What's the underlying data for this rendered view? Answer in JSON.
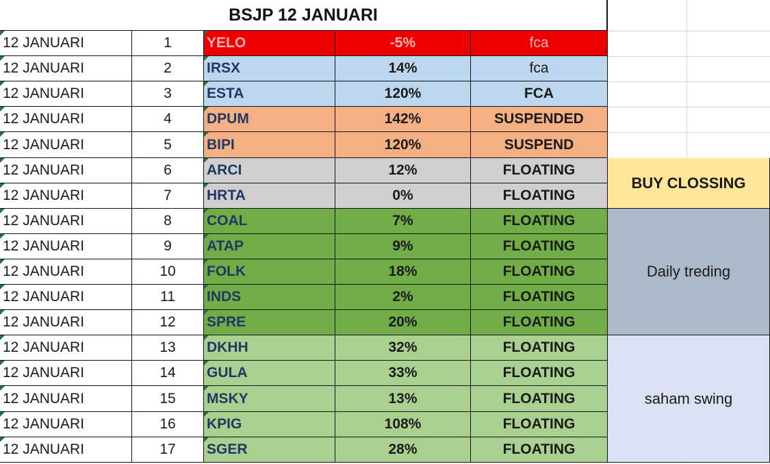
{
  "sheet_title": "BSJP  12  JANUARI",
  "colors": {
    "red": "#ee0000",
    "blue": "#bdd7ee",
    "orange": "#f4b084",
    "gray": "#d0cece",
    "green_dark": "#70ad47",
    "green_light": "#a9d08e",
    "side_yellow": "#ffe699",
    "side_slate": "#acb9ca",
    "side_lavender": "#d9e1f2"
  },
  "rows": [
    {
      "date": "12 JANUARI",
      "no": "1",
      "code": "YELO",
      "pct": "-5%",
      "status": "fca",
      "band": "red"
    },
    {
      "date": "12 JANUARI",
      "no": "2",
      "code": "IRSX",
      "pct": "14%",
      "status": "fca",
      "band": "blue"
    },
    {
      "date": "12 JANUARI",
      "no": "3",
      "code": "ESTA",
      "pct": "120%",
      "status": "FCA",
      "band": "blue"
    },
    {
      "date": "12 JANUARI",
      "no": "4",
      "code": "DPUM",
      "pct": "142%",
      "status": "SUSPENDED",
      "band": "orange"
    },
    {
      "date": "12 JANUARI",
      "no": "5",
      "code": "BIPI",
      "pct": "120%",
      "status": "SUSPEND",
      "band": "orange"
    },
    {
      "date": "12 JANUARI",
      "no": "6",
      "code": "ARCI",
      "pct": "12%",
      "status": "FLOATING",
      "band": "gray"
    },
    {
      "date": "12 JANUARI",
      "no": "7",
      "code": "HRTA",
      "pct": "0%",
      "status": "FLOATING",
      "band": "gray"
    },
    {
      "date": "12 JANUARI",
      "no": "8",
      "code": "COAL",
      "pct": "7%",
      "status": "FLOATING",
      "band": "green_dark"
    },
    {
      "date": "12 JANUARI",
      "no": "9",
      "code": "ATAP",
      "pct": "9%",
      "status": "FLOATING",
      "band": "green_dark"
    },
    {
      "date": "12 JANUARI",
      "no": "10",
      "code": "FOLK",
      "pct": "18%",
      "status": "FLOATING",
      "band": "green_dark"
    },
    {
      "date": "12 JANUARI",
      "no": "11",
      "code": "INDS",
      "pct": "2%",
      "status": "FLOATING",
      "band": "green_dark"
    },
    {
      "date": "12 JANUARI",
      "no": "12",
      "code": "SPRE",
      "pct": "20%",
      "status": "FLOATING",
      "band": "green_dark"
    },
    {
      "date": "12 JANUARI",
      "no": "13",
      "code": "DKHH",
      "pct": "32%",
      "status": "FLOATING",
      "band": "green_light"
    },
    {
      "date": "12 JANUARI",
      "no": "14",
      "code": "GULA",
      "pct": "33%",
      "status": "FLOATING",
      "band": "green_light"
    },
    {
      "date": "12 JANUARI",
      "no": "15",
      "code": "MSKY",
      "pct": "13%",
      "status": "FLOATING",
      "band": "green_light"
    },
    {
      "date": "12 JANUARI",
      "no": "16",
      "code": "KPIG",
      "pct": "108%",
      "status": "FLOATING",
      "band": "green_light"
    },
    {
      "date": "12 JANUARI",
      "no": "17",
      "code": "SGER",
      "pct": "28%",
      "status": "FLOATING",
      "band": "green_light"
    }
  ],
  "side_groups": [
    {
      "label": "BUY CLOSSING",
      "color": "side_yellow",
      "first_row": 6,
      "last_row": 7
    },
    {
      "label": "Daily treding",
      "color": "side_slate",
      "first_row": 8,
      "last_row": 12
    },
    {
      "label": "saham swing",
      "color": "side_lavender",
      "first_row": 13,
      "last_row": 17
    }
  ]
}
